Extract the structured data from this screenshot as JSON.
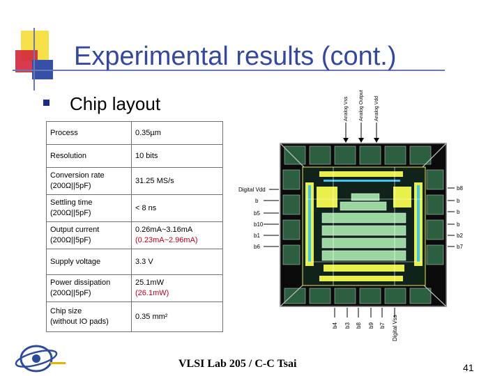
{
  "header": {
    "title": "Experimental results (cont.)"
  },
  "section": {
    "bullet_text": "Chip layout"
  },
  "spec_table": {
    "rows": [
      {
        "param": "Process",
        "value": "0.35µm",
        "value_note": ""
      },
      {
        "param": "Resolution",
        "value": "10 bits",
        "value_note": ""
      },
      {
        "param": [
          "Conversion rate",
          "(200Ω||5pF)"
        ],
        "value": "31.25 MS/s",
        "value_note": ""
      },
      {
        "param": [
          "Settling time",
          "(200Ω||5pF)"
        ],
        "value": "< 8 ns",
        "value_note": ""
      },
      {
        "param": [
          "Output current",
          "(200Ω||5pF)"
        ],
        "value": "0.26mA~3.16mA",
        "value_note": "(0.23mA~2.96mA)"
      },
      {
        "param": "Supply voltage",
        "value": "3.3 V",
        "value_note": ""
      },
      {
        "param": [
          "Power dissipation",
          "(200Ω||5pF)"
        ],
        "value": "25.1mW",
        "value_note": "(26.1mW)"
      },
      {
        "param": [
          "Chip size",
          "(without IO pads)"
        ],
        "value": "0.35 mm²",
        "value_note": ""
      }
    ]
  },
  "chip_layout": {
    "top_pins": [
      "Analog Vss",
      "Analog Output",
      "Analog Vdd"
    ],
    "left_pins": [
      "Digital Vdd",
      "b",
      "b5",
      "b10",
      "b1",
      "b6"
    ],
    "right_pins": [
      "b8",
      "b",
      "b",
      "b",
      "b2",
      "b7"
    ],
    "bottom_pins": [
      "b4",
      "b3",
      "b8",
      "b9",
      "b7",
      "Digital Vss"
    ]
  },
  "footer": {
    "text": "VLSI Lab 205 / C-C Tsai",
    "page_number": "41"
  },
  "colors": {
    "title": "#3347a6",
    "accent_yellow": "#f6e14a",
    "accent_red": "#d3263a",
    "accent_blue": "#3650a8",
    "note_red": "#c0001a"
  }
}
